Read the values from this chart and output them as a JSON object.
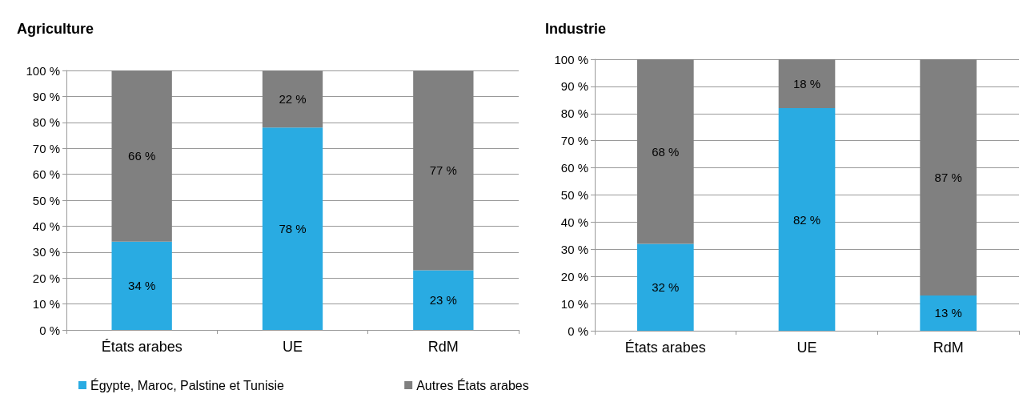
{
  "chart_data": [
    {
      "type": "bar",
      "title": "Agriculture",
      "stacked": true,
      "categories": [
        "États arabes",
        "UE",
        "RdM"
      ],
      "series": [
        {
          "name": "Égypte, Maroc, Palstine et Tunisie",
          "color": "#29abe2",
          "values": [
            34,
            78,
            23
          ],
          "value_labels": [
            "34 %",
            "78 %",
            "23 %"
          ]
        },
        {
          "name": "Autres États arabes",
          "color": "#808080",
          "values": [
            66,
            22,
            77
          ],
          "value_labels": [
            "66 %",
            "22 %",
            "77 %"
          ]
        }
      ],
      "ylim": [
        0,
        100
      ],
      "yticks": [
        {
          "value": 0,
          "label": "0 %"
        },
        {
          "value": 10,
          "label": "10 %"
        },
        {
          "value": 20,
          "label": "20 %"
        },
        {
          "value": 30,
          "label": "30 %"
        },
        {
          "value": 40,
          "label": "40 %"
        },
        {
          "value": 50,
          "label": "50 %"
        },
        {
          "value": 60,
          "label": "60 %"
        },
        {
          "value": 70,
          "label": "70 %"
        },
        {
          "value": 80,
          "label": "80 %"
        },
        {
          "value": 90,
          "label": "90 %"
        },
        {
          "value": 100,
          "label": "100 %"
        }
      ],
      "grid": "y",
      "legend": "bottom left"
    },
    {
      "type": "bar",
      "title": "Industrie",
      "stacked": true,
      "categories": [
        "États arabes",
        "UE",
        "RdM"
      ],
      "series": [
        {
          "color": "#29abe2",
          "values": [
            32,
            82,
            13
          ],
          "value_labels": [
            "32 %",
            "82 %",
            "13 %"
          ]
        },
        {
          "color": "#808080",
          "values": [
            68,
            18,
            87
          ],
          "value_labels": [
            "68 %",
            "18 %",
            "87 %"
          ]
        }
      ],
      "ylim": [
        0,
        100
      ],
      "yticks": [
        {
          "value": 0,
          "label": "0 %"
        },
        {
          "value": 10,
          "label": "10 %"
        },
        {
          "value": 20,
          "label": "20 %"
        },
        {
          "value": 30,
          "label": "30 %"
        },
        {
          "value": 40,
          "label": "40 %"
        },
        {
          "value": 50,
          "label": "50 %"
        },
        {
          "value": 60,
          "label": "60 %"
        },
        {
          "value": 70,
          "label": "70 %"
        },
        {
          "value": 80,
          "label": "80 %"
        },
        {
          "value": 90,
          "label": "90 %"
        },
        {
          "value": 100,
          "label": "100 %"
        }
      ],
      "grid": "y"
    }
  ]
}
